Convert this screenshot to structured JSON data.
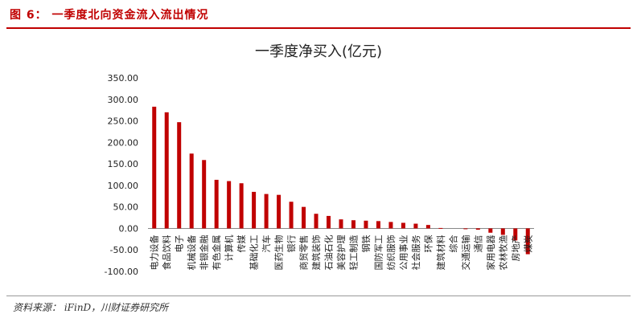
{
  "figure_title": "图 6：  一季度北向资金流入流出情况",
  "source": "资料来源：  iFinD，川财证券研究所",
  "colors": {
    "bar": "#c00000",
    "accent": "#c00000"
  },
  "chart_data": {
    "type": "bar",
    "title": "一季度净买入(亿元)",
    "xlabel": "",
    "ylabel": "",
    "ylim": [
      -100,
      350
    ],
    "yticks": [
      -100,
      -50,
      0,
      50,
      100,
      150,
      200,
      250,
      300,
      350
    ],
    "ytick_labels": [
      "-100.00",
      "-50.00",
      "0.00",
      "50.00",
      "100.00",
      "150.00",
      "200.00",
      "250.00",
      "300.00",
      "350.00"
    ],
    "grid": false,
    "legend": "none",
    "categories": [
      "电力设备",
      "食品饮料",
      "电子",
      "机械设备",
      "非银金融",
      "有色金属",
      "计算机",
      "传媒",
      "基础化工",
      "汽车",
      "医药生物",
      "银行",
      "商贸零售",
      "建筑装饰",
      "石油石化",
      "美容护理",
      "轻工制造",
      "钢铁",
      "国防军工",
      "纺织服饰",
      "公用事业",
      "社会服务",
      "环保",
      "建筑材料",
      "综合",
      "交通运输",
      "通信",
      "家用电器",
      "农林牧渔",
      "房地产",
      "煤炭"
    ],
    "values": [
      283,
      270,
      247,
      174,
      159,
      113,
      110,
      105,
      85,
      80,
      78,
      62,
      50,
      34,
      29,
      21,
      19,
      18,
      17,
      15,
      13,
      11,
      8,
      1,
      0,
      -1,
      -3,
      -10,
      -15,
      -28,
      -60
    ]
  }
}
